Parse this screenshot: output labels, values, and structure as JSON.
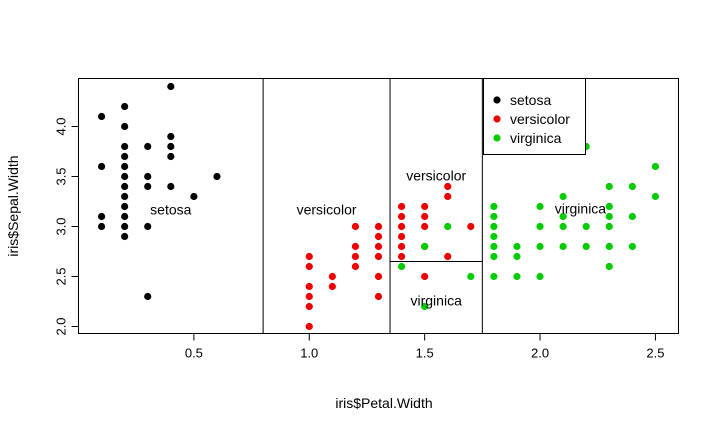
{
  "chart_data": {
    "type": "scatter",
    "xlabel": "iris$Petal.Width",
    "ylabel": "iris$Sepal.Width",
    "xlim": [
      0.0,
      2.6
    ],
    "ylim": [
      1.93,
      4.48
    ],
    "x_ticks": [
      {
        "value": 0.5,
        "label": "0.5"
      },
      {
        "value": 1.0,
        "label": "1.0"
      },
      {
        "value": 1.5,
        "label": "1.5"
      },
      {
        "value": 2.0,
        "label": "2.0"
      },
      {
        "value": 2.5,
        "label": "2.5"
      }
    ],
    "y_ticks": [
      {
        "value": 2.0,
        "label": "2.0"
      },
      {
        "value": 2.5,
        "label": "2.5"
      },
      {
        "value": 3.0,
        "label": "3.0"
      },
      {
        "value": 3.5,
        "label": "3.5"
      },
      {
        "value": 4.0,
        "label": "4.0"
      }
    ],
    "grid": false,
    "legend_position": "top-right",
    "series": [
      {
        "name": "setosa",
        "color": "#000000",
        "points": [
          [
            0.1,
            4.1
          ],
          [
            0.1,
            3.6
          ],
          [
            0.1,
            3.1
          ],
          [
            0.1,
            3.0
          ],
          [
            0.2,
            4.2
          ],
          [
            0.2,
            4.0
          ],
          [
            0.2,
            3.8
          ],
          [
            0.2,
            3.7
          ],
          [
            0.2,
            3.6
          ],
          [
            0.2,
            3.5
          ],
          [
            0.2,
            3.4
          ],
          [
            0.2,
            3.3
          ],
          [
            0.2,
            3.2
          ],
          [
            0.2,
            3.1
          ],
          [
            0.2,
            3.0
          ],
          [
            0.2,
            2.9
          ],
          [
            0.3,
            3.8
          ],
          [
            0.3,
            3.5
          ],
          [
            0.3,
            3.4
          ],
          [
            0.3,
            3.0
          ],
          [
            0.3,
            2.3
          ],
          [
            0.4,
            4.4
          ],
          [
            0.4,
            3.9
          ],
          [
            0.4,
            3.8
          ],
          [
            0.4,
            3.7
          ],
          [
            0.4,
            3.4
          ],
          [
            0.5,
            3.3
          ],
          [
            0.6,
            3.5
          ]
        ]
      },
      {
        "name": "versicolor",
        "color": "#ee0000",
        "points": [
          [
            1.0,
            2.7
          ],
          [
            1.0,
            2.6
          ],
          [
            1.0,
            2.4
          ],
          [
            1.0,
            2.3
          ],
          [
            1.0,
            2.2
          ],
          [
            1.0,
            2.0
          ],
          [
            1.1,
            2.5
          ],
          [
            1.1,
            2.4
          ],
          [
            1.2,
            3.0
          ],
          [
            1.2,
            2.8
          ],
          [
            1.2,
            2.7
          ],
          [
            1.2,
            2.6
          ],
          [
            1.3,
            3.0
          ],
          [
            1.3,
            2.9
          ],
          [
            1.3,
            2.8
          ],
          [
            1.3,
            2.7
          ],
          [
            1.3,
            2.5
          ],
          [
            1.3,
            2.3
          ],
          [
            1.4,
            3.2
          ],
          [
            1.4,
            3.1
          ],
          [
            1.4,
            3.0
          ],
          [
            1.4,
            2.9
          ],
          [
            1.4,
            2.8
          ],
          [
            1.4,
            2.7
          ],
          [
            1.5,
            3.2
          ],
          [
            1.5,
            3.1
          ],
          [
            1.5,
            3.0
          ],
          [
            1.5,
            2.8
          ],
          [
            1.5,
            2.5
          ],
          [
            1.6,
            3.4
          ],
          [
            1.6,
            3.3
          ],
          [
            1.6,
            2.7
          ],
          [
            1.7,
            3.0
          ]
        ]
      },
      {
        "name": "virginica",
        "color": "#00cc00",
        "points": [
          [
            1.4,
            2.6
          ],
          [
            1.5,
            2.8
          ],
          [
            1.5,
            2.2
          ],
          [
            1.6,
            3.0
          ],
          [
            1.7,
            2.5
          ],
          [
            1.8,
            3.2
          ],
          [
            1.8,
            3.1
          ],
          [
            1.8,
            3.0
          ],
          [
            1.8,
            2.9
          ],
          [
            1.8,
            2.8
          ],
          [
            1.8,
            2.7
          ],
          [
            1.8,
            2.5
          ],
          [
            1.9,
            2.8
          ],
          [
            1.9,
            2.7
          ],
          [
            1.9,
            2.5
          ],
          [
            2.0,
            3.2
          ],
          [
            2.0,
            3.0
          ],
          [
            2.0,
            2.8
          ],
          [
            2.0,
            2.5
          ],
          [
            2.1,
            3.3
          ],
          [
            2.1,
            3.1
          ],
          [
            2.1,
            3.0
          ],
          [
            2.1,
            2.8
          ],
          [
            2.2,
            3.8
          ],
          [
            2.2,
            3.0
          ],
          [
            2.2,
            2.8
          ],
          [
            2.3,
            3.4
          ],
          [
            2.3,
            3.2
          ],
          [
            2.3,
            3.1
          ],
          [
            2.3,
            3.0
          ],
          [
            2.3,
            2.8
          ],
          [
            2.3,
            2.6
          ],
          [
            2.4,
            3.4
          ],
          [
            2.4,
            3.1
          ],
          [
            2.4,
            2.8
          ],
          [
            2.5,
            3.6
          ],
          [
            2.5,
            3.3
          ]
        ]
      }
    ],
    "partition_lines": [
      {
        "orientation": "vertical",
        "x": 0.8,
        "y_from": 1.93,
        "y_to": 4.48
      },
      {
        "orientation": "vertical",
        "x": 1.35,
        "y_from": 1.93,
        "y_to": 4.48
      },
      {
        "orientation": "vertical",
        "x": 1.75,
        "y_from": 1.93,
        "y_to": 4.48
      },
      {
        "orientation": "horizontal",
        "y": 2.65,
        "x_from": 1.35,
        "x_to": 1.75
      }
    ],
    "region_labels": [
      {
        "text": "setosa",
        "x": 0.4,
        "y": 3.17
      },
      {
        "text": "versicolor",
        "x": 1.075,
        "y": 3.17
      },
      {
        "text": "versicolor",
        "x": 1.55,
        "y": 3.51
      },
      {
        "text": "virginica",
        "x": 1.55,
        "y": 2.26
      },
      {
        "text": "virginica",
        "x": 2.175,
        "y": 3.18
      }
    ]
  }
}
